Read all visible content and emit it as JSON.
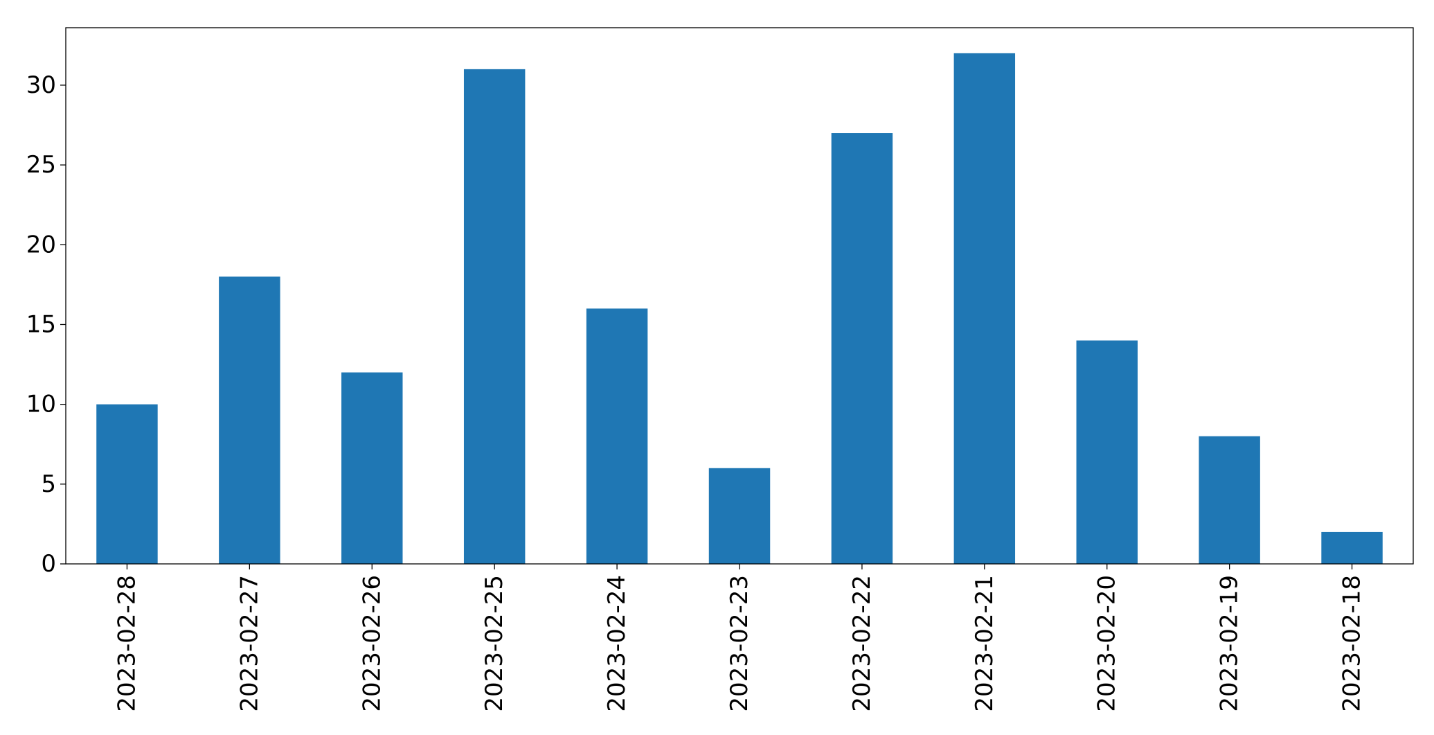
{
  "chart_data": {
    "type": "bar",
    "categories": [
      "2023-02-28",
      "2023-02-27",
      "2023-02-26",
      "2023-02-25",
      "2023-02-24",
      "2023-02-23",
      "2023-02-22",
      "2023-02-21",
      "2023-02-20",
      "2023-02-19",
      "2023-02-18"
    ],
    "values": [
      10,
      18,
      12,
      31,
      16,
      6,
      27,
      32,
      14,
      8,
      2
    ],
    "title": "",
    "xlabel": "",
    "ylabel": "",
    "ylim": [
      0,
      33.6
    ],
    "yticks": [
      0,
      5,
      10,
      15,
      20,
      25,
      30
    ],
    "ytick_labels": [
      "0",
      "5",
      "10",
      "15",
      "20",
      "25",
      "30"
    ],
    "grid": false,
    "bar_color": "#1f77b4"
  }
}
